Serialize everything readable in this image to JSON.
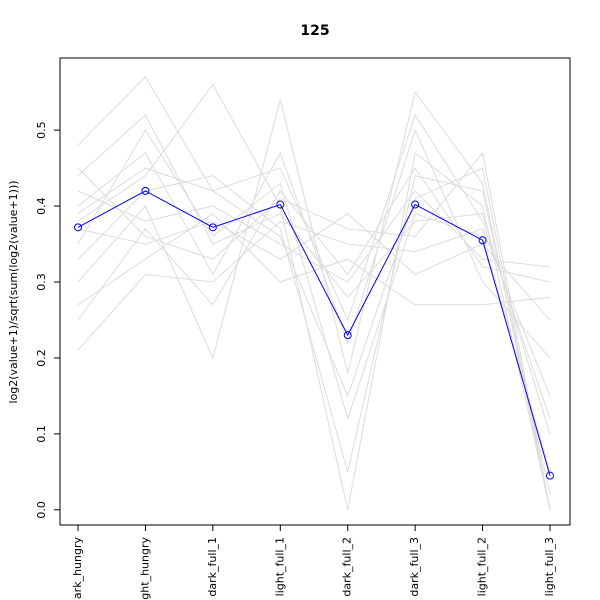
{
  "chart_data": {
    "type": "line",
    "title": "125",
    "y_label": "log2(value+1)/sqrt(sum(log2(value+1)))",
    "categories": [
      "dark_hungry",
      "light_hungry",
      "dark_full_1",
      "light_full_1",
      "dark_full_2",
      "dark_full_3",
      "light_full_2",
      "light_full_3"
    ],
    "ylim": [
      -0.02,
      0.595
    ],
    "yticks": [
      {
        "value": 0,
        "label": "0.0"
      },
      0.1,
      0.2,
      0.3,
      0.4,
      0.5
    ],
    "series": [
      {
        "color": "#dcdcdc",
        "values": [
          0.48,
          0.57,
          0.42,
          0.45,
          0.25,
          0.52,
          0.38,
          0.12
        ]
      },
      {
        "color": "#dcdcdc",
        "values": [
          0.21,
          0.31,
          0.3,
          0.38,
          0.35,
          0.34,
          0.37,
          0.15
        ]
      },
      {
        "color": "#dcdcdc",
        "values": [
          0.38,
          0.44,
          0.56,
          0.4,
          0.0,
          0.47,
          0.4,
          0.0
        ]
      },
      {
        "color": "#dcdcdc",
        "values": [
          0.3,
          0.4,
          0.2,
          0.54,
          0.18,
          0.55,
          0.43,
          0.0
        ]
      },
      {
        "color": "#dcdcdc",
        "values": [
          0.42,
          0.38,
          0.4,
          0.35,
          0.3,
          0.42,
          0.33,
          0.32
        ]
      },
      {
        "color": "#dcdcdc",
        "values": [
          0.35,
          0.5,
          0.36,
          0.43,
          0.12,
          0.39,
          0.36,
          0.05
        ]
      },
      {
        "color": "#dcdcdc",
        "values": [
          0.45,
          0.36,
          0.33,
          0.41,
          0.37,
          0.36,
          0.47,
          0.0
        ]
      },
      {
        "color": "#dcdcdc",
        "values": [
          0.27,
          0.33,
          0.39,
          0.3,
          0.33,
          0.27,
          0.27,
          0.28
        ]
      },
      {
        "color": "#dcdcdc",
        "values": [
          0.4,
          0.47,
          0.31,
          0.47,
          0.22,
          0.5,
          0.3,
          0.2
        ]
      },
      {
        "color": "#dcdcdc",
        "values": [
          0.33,
          0.42,
          0.44,
          0.37,
          0.05,
          0.44,
          0.42,
          0.02
        ]
      },
      {
        "color": "#dcdcdc",
        "values": [
          0.37,
          0.35,
          0.38,
          0.33,
          0.39,
          0.31,
          0.35,
          0.25
        ]
      },
      {
        "color": "#dcdcdc",
        "values": [
          0.44,
          0.52,
          0.35,
          0.39,
          0.28,
          0.38,
          0.39,
          0.1
        ]
      },
      {
        "color": "#dcdcdc",
        "values": [
          0.25,
          0.37,
          0.27,
          0.42,
          0.31,
          0.45,
          0.32,
          0.3
        ]
      },
      {
        "color": "#dcdcdc",
        "values": [
          0.39,
          0.45,
          0.42,
          0.36,
          0.15,
          0.41,
          0.45,
          0.0
        ]
      },
      {
        "color": "#0000ff",
        "marker": "circle",
        "values": [
          0.372,
          0.42,
          0.372,
          0.402,
          0.23,
          0.402,
          0.355,
          0.045
        ]
      }
    ]
  }
}
